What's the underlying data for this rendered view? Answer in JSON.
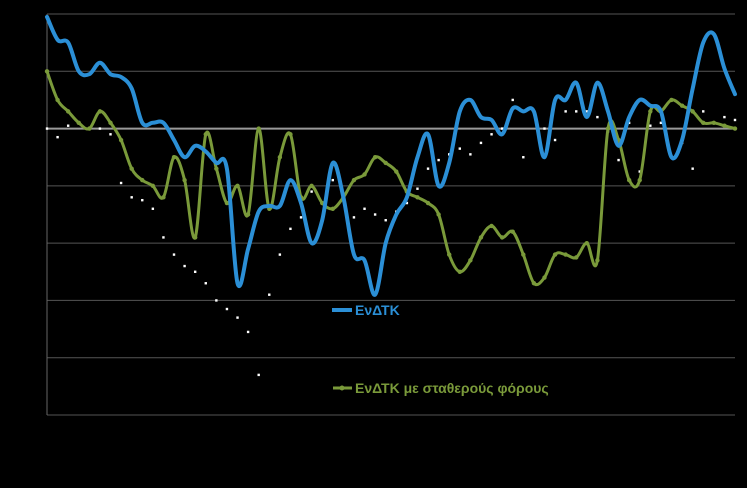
{
  "chart_data": {
    "type": "line",
    "title": "",
    "xlabel": "",
    "ylabel": "",
    "ylim": [
      -5,
      2
    ],
    "grid": true,
    "legend": "inside-center",
    "colors": {
      "background": "#000000",
      "grid": "#555555",
      "zero_line": "#9a9a9a",
      "axis": "#666666",
      "series1": "#2b8fd6",
      "series2": "#7a9a3a",
      "dots": "#ffffff"
    },
    "x": [
      0,
      1,
      2,
      3,
      4,
      5,
      6,
      7,
      8,
      9,
      10,
      11,
      12,
      13,
      14,
      15,
      16,
      17,
      18,
      19,
      20,
      21,
      22,
      23,
      24,
      25,
      26,
      27,
      28,
      29,
      30,
      31,
      32,
      33,
      34,
      35,
      36,
      37,
      38,
      39,
      40,
      41,
      42,
      43,
      44,
      45,
      46,
      47,
      48,
      49,
      50,
      51,
      52,
      53,
      54,
      55,
      56,
      57,
      58,
      59,
      60,
      61,
      62,
      63,
      64,
      65
    ],
    "series": [
      {
        "name": "ΕνΔΤΚ",
        "style": "line",
        "values": [
          1.95,
          1.55,
          1.5,
          1.0,
          0.95,
          1.15,
          0.95,
          0.9,
          0.7,
          0.1,
          0.1,
          0.1,
          -0.2,
          -0.5,
          -0.3,
          -0.4,
          -0.6,
          -0.7,
          -2.7,
          -2.1,
          -1.45,
          -1.35,
          -1.35,
          -0.9,
          -1.3,
          -2.0,
          -1.6,
          -0.6,
          -1.2,
          -2.2,
          -2.3,
          -2.9,
          -2.0,
          -1.5,
          -1.2,
          -0.5,
          -0.1,
          -1.0,
          -0.6,
          0.3,
          0.5,
          0.2,
          0.15,
          -0.1,
          0.35,
          0.3,
          0.3,
          -0.5,
          0.5,
          0.5,
          0.8,
          0.2,
          0.8,
          0.3,
          -0.3,
          0.2,
          0.5,
          0.4,
          0.3,
          -0.5,
          -0.2,
          0.7,
          1.5,
          1.65,
          1.05,
          0.6
        ]
      },
      {
        "name": "ΕνΔΤΚ με σταθερούς φόρους",
        "style": "line",
        "values": [
          1.0,
          0.5,
          0.3,
          0.1,
          0.0,
          0.3,
          0.1,
          -0.2,
          -0.7,
          -0.9,
          -1.0,
          -1.2,
          -0.5,
          -0.9,
          -1.9,
          -0.1,
          -0.7,
          -1.3,
          -1.0,
          -1.5,
          0.0,
          -1.4,
          -0.5,
          -0.1,
          -1.2,
          -1.0,
          -1.3,
          -1.4,
          -1.2,
          -0.9,
          -0.8,
          -0.5,
          -0.6,
          -0.75,
          -1.1,
          -1.2,
          -1.3,
          -1.5,
          -2.2,
          -2.5,
          -2.3,
          -1.9,
          -1.7,
          -1.9,
          -1.8,
          -2.2,
          -2.7,
          -2.6,
          -2.2,
          -2.2,
          -2.25,
          -2.0,
          -2.3,
          0.0,
          -0.2,
          -0.9,
          -0.9,
          0.3,
          0.3,
          0.5,
          0.4,
          0.3,
          0.1,
          0.1,
          0.05,
          0.0
        ]
      },
      {
        "name": "",
        "style": "dots",
        "values": [
          0.0,
          -0.15,
          0.05,
          0.1,
          0.0,
          0.0,
          -0.1,
          -0.95,
          -1.2,
          -1.25,
          -1.4,
          -1.9,
          -2.2,
          -2.4,
          -2.5,
          -2.7,
          -3.0,
          -3.15,
          -3.3,
          -3.55,
          -4.3,
          -2.9,
          -2.2,
          -1.75,
          -1.55,
          -1.1,
          -1.6,
          -0.9,
          -1.2,
          -1.55,
          -1.4,
          -1.5,
          -1.6,
          -1.45,
          -1.3,
          -1.05,
          -0.7,
          -0.55,
          -0.45,
          -0.35,
          -0.45,
          -0.25,
          -0.1,
          0.0,
          0.5,
          -0.5,
          0.3,
          0.0,
          -0.2,
          0.3,
          0.3,
          0.3,
          0.2,
          -0.05,
          -0.55,
          0.1,
          -0.75,
          0.05,
          0.1,
          -0.5,
          -0.25,
          -0.7,
          0.3,
          0.1,
          0.2,
          0.15
        ]
      }
    ]
  },
  "legend": {
    "item1": "ΕνΔΤΚ",
    "item2": "ΕνΔΤΚ με σταθερούς φόρους"
  }
}
